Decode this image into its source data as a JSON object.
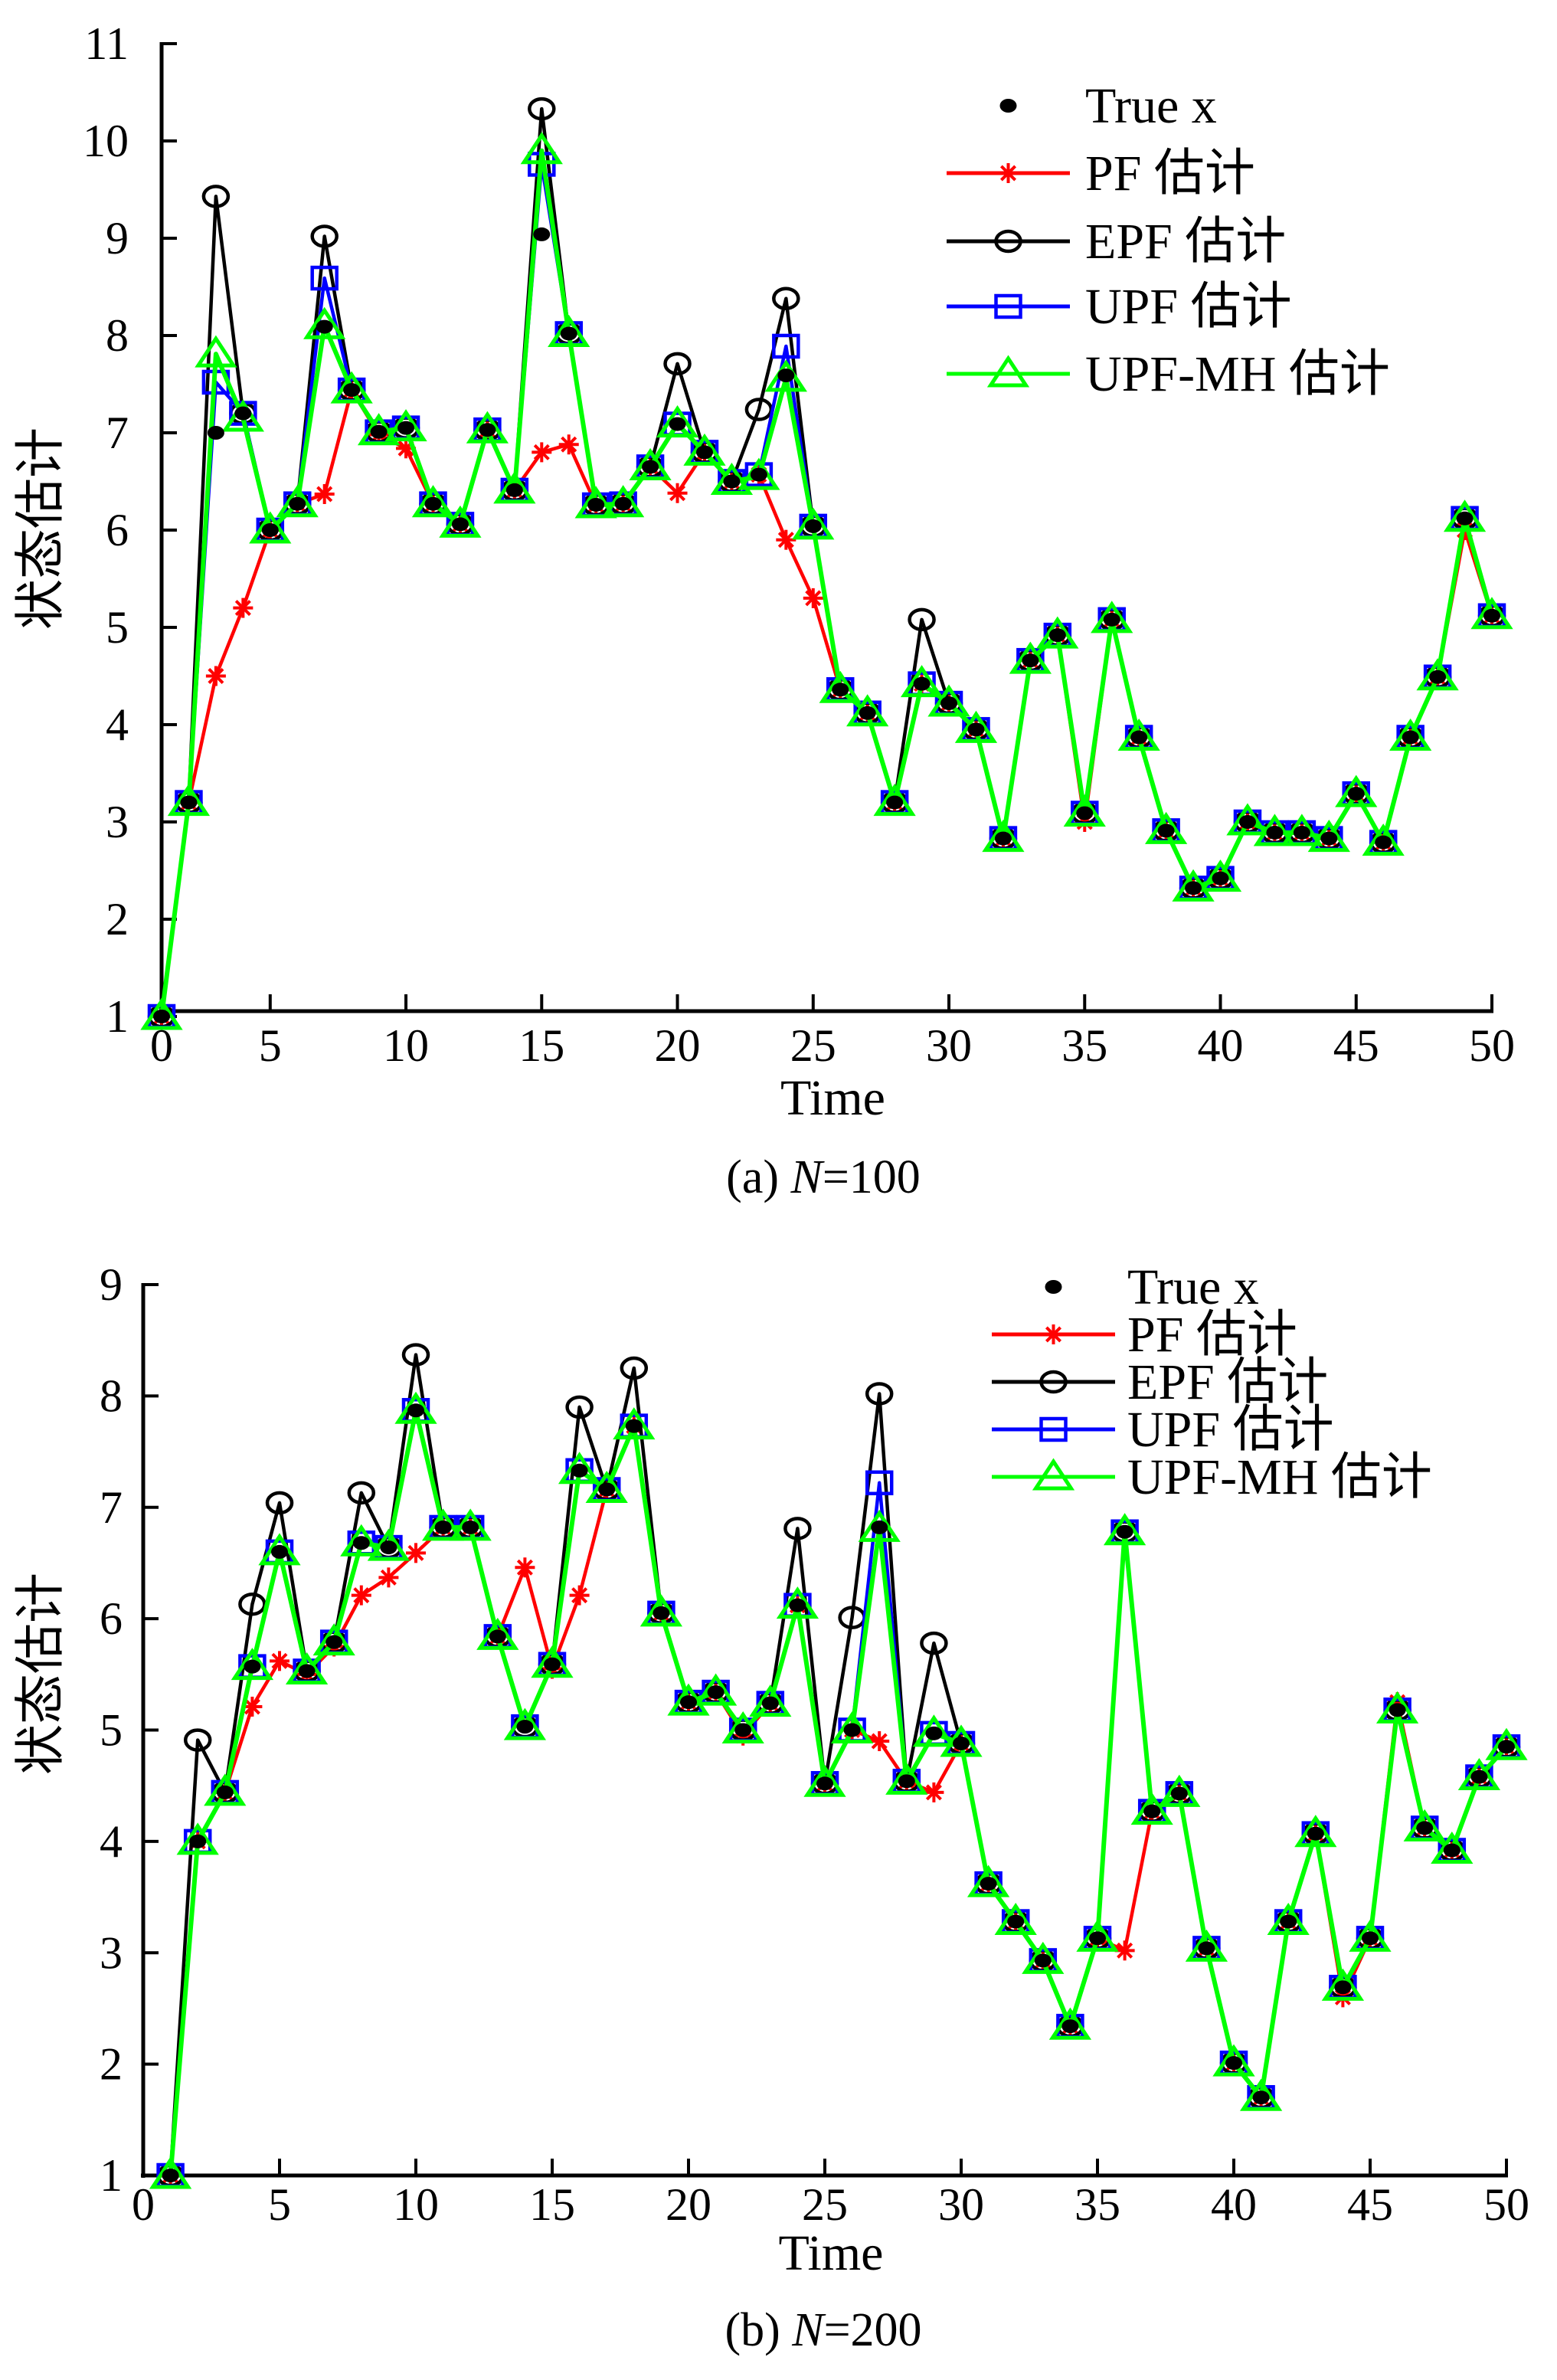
{
  "chart_data": [
    {
      "type": "line",
      "caption": {
        "prefix": "(a) ",
        "var": "N",
        "suffix": "=100"
      },
      "xlabel": "Time",
      "ylabel": "状态估计",
      "xlim": [
        1,
        50
      ],
      "ylim": [
        1,
        11
      ],
      "xticks": [
        0,
        5,
        10,
        15,
        20,
        25,
        30,
        35,
        40,
        45,
        50
      ],
      "yticks": [
        1,
        2,
        3,
        4,
        5,
        6,
        7,
        8,
        9,
        10,
        11
      ],
      "grid": false,
      "legend_position": "top-right",
      "x": [
        1,
        2,
        3,
        4,
        5,
        6,
        7,
        8,
        9,
        10,
        11,
        12,
        13,
        14,
        15,
        16,
        17,
        18,
        19,
        20,
        21,
        22,
        23,
        24,
        25,
        26,
        27,
        28,
        29,
        30,
        31,
        32,
        33,
        34,
        35,
        36,
        37,
        38,
        39,
        40,
        41,
        42,
        43,
        44,
        45,
        46,
        47,
        48,
        49,
        50
      ],
      "series": [
        {
          "name": "True x",
          "key": "true",
          "color": "#000000",
          "marker": "dot",
          "values": [
            1.0,
            3.2,
            7.0,
            7.2,
            6.0,
            6.27,
            8.09,
            7.44,
            7.01,
            7.05,
            6.27,
            6.06,
            7.03,
            6.41,
            9.04,
            8.02,
            6.26,
            6.27,
            6.65,
            7.09,
            6.8,
            6.5,
            6.57,
            7.59,
            6.04,
            4.36,
            4.12,
            3.2,
            4.42,
            4.22,
            3.95,
            2.83,
            4.66,
            4.92,
            3.09,
            5.08,
            3.87,
            2.91,
            2.32,
            2.42,
            3.0,
            2.89,
            2.89,
            2.83,
            3.29,
            2.79,
            3.87,
            4.49,
            6.12,
            5.12
          ]
        },
        {
          "name": "PF 估计",
          "key": "pf",
          "color": "#ff0000",
          "marker": "asterisk",
          "values": [
            1.0,
            3.2,
            4.5,
            5.2,
            6.0,
            6.27,
            6.37,
            7.44,
            6.98,
            6.84,
            6.27,
            6.06,
            7.03,
            6.41,
            6.8,
            6.88,
            6.26,
            6.27,
            6.65,
            6.38,
            6.8,
            6.5,
            6.57,
            5.9,
            5.3,
            4.36,
            4.12,
            3.2,
            4.42,
            4.22,
            3.95,
            2.83,
            4.66,
            4.92,
            3.0,
            5.08,
            3.87,
            2.91,
            2.32,
            2.42,
            3.0,
            2.89,
            2.89,
            2.83,
            3.29,
            2.79,
            3.87,
            4.49,
            6.0,
            5.12
          ]
        },
        {
          "name": "EPF 估计",
          "key": "epf",
          "color": "#000000",
          "marker": "circle",
          "values": [
            1.0,
            3.2,
            9.43,
            7.2,
            6.0,
            6.27,
            9.02,
            7.44,
            7.01,
            7.05,
            6.27,
            6.06,
            7.03,
            6.41,
            10.33,
            8.02,
            6.26,
            6.27,
            6.65,
            7.71,
            6.8,
            6.5,
            7.24,
            8.38,
            6.04,
            4.36,
            4.12,
            3.2,
            5.08,
            4.22,
            3.95,
            2.83,
            4.66,
            4.92,
            3.09,
            5.08,
            3.87,
            2.91,
            2.32,
            2.42,
            3.0,
            2.89,
            2.89,
            2.83,
            3.29,
            2.79,
            3.87,
            4.49,
            6.12,
            5.12
          ]
        },
        {
          "name": "UPF 估计",
          "key": "upf",
          "color": "#0000ff",
          "marker": "square",
          "values": [
            1.0,
            3.2,
            7.52,
            7.2,
            6.0,
            6.27,
            8.59,
            7.44,
            7.01,
            7.05,
            6.27,
            6.06,
            7.03,
            6.41,
            9.76,
            8.02,
            6.26,
            6.27,
            6.65,
            7.09,
            6.8,
            6.5,
            6.57,
            7.89,
            6.04,
            4.36,
            4.12,
            3.2,
            4.42,
            4.22,
            3.95,
            2.83,
            4.66,
            4.92,
            3.09,
            5.08,
            3.87,
            2.91,
            2.32,
            2.42,
            3.0,
            2.89,
            2.89,
            2.83,
            3.29,
            2.79,
            3.87,
            4.49,
            6.12,
            5.12
          ]
        },
        {
          "name": "UPF-MH 估计",
          "key": "upfmh",
          "color": "#00ff00",
          "marker": "triangle",
          "values": [
            1.0,
            3.2,
            7.81,
            7.15,
            6.0,
            6.27,
            8.1,
            7.44,
            7.01,
            7.05,
            6.27,
            6.06,
            7.03,
            6.41,
            9.9,
            8.02,
            6.26,
            6.27,
            6.65,
            7.09,
            6.8,
            6.5,
            6.55,
            7.56,
            6.04,
            4.36,
            4.12,
            3.2,
            4.42,
            4.22,
            3.95,
            2.83,
            4.66,
            4.92,
            3.09,
            5.08,
            3.87,
            2.91,
            2.32,
            2.42,
            3.0,
            2.89,
            2.89,
            2.83,
            3.29,
            2.79,
            3.87,
            4.49,
            6.12,
            5.12
          ]
        }
      ]
    },
    {
      "type": "line",
      "caption": {
        "prefix": "(b) ",
        "var": "N",
        "suffix": "=200"
      },
      "xlabel": "Time",
      "ylabel": "状态估计",
      "xlim": [
        0,
        50
      ],
      "ylim": [
        1,
        9
      ],
      "xticks": [
        0,
        5,
        10,
        15,
        20,
        25,
        30,
        35,
        40,
        45,
        50
      ],
      "yticks": [
        1,
        2,
        3,
        4,
        5,
        6,
        7,
        8,
        9
      ],
      "grid": false,
      "legend_position": "top-right",
      "x": [
        1,
        2,
        3,
        4,
        5,
        6,
        7,
        8,
        9,
        10,
        11,
        12,
        13,
        14,
        15,
        16,
        17,
        18,
        19,
        20,
        21,
        22,
        23,
        24,
        25,
        26,
        27,
        28,
        29,
        30,
        31,
        32,
        33,
        34,
        35,
        36,
        37,
        38,
        39,
        40,
        41,
        42,
        43,
        44,
        45,
        46,
        47,
        48,
        49,
        50
      ],
      "series": [
        {
          "name": "True x",
          "key": "true",
          "color": "#000000",
          "marker": "dot",
          "values": [
            1.0,
            4.0,
            4.44,
            5.57,
            6.6,
            5.53,
            5.79,
            6.68,
            6.64,
            7.87,
            6.82,
            6.82,
            5.84,
            5.03,
            5.59,
            7.33,
            7.16,
            7.73,
            6.05,
            5.25,
            5.34,
            5.0,
            5.24,
            6.12,
            4.52,
            5.0,
            6.82,
            4.54,
            4.97,
            4.88,
            3.62,
            3.28,
            2.93,
            2.34,
            3.13,
            6.78,
            4.27,
            4.43,
            3.04,
            2.01,
            1.7,
            3.28,
            4.07,
            2.69,
            3.13,
            5.18,
            4.12,
            3.92,
            4.58,
            4.85
          ]
        },
        {
          "name": "PF 估计",
          "key": "pf",
          "color": "#ff0000",
          "marker": "asterisk",
          "values": [
            1.0,
            4.0,
            4.44,
            5.21,
            5.62,
            5.5,
            5.75,
            6.21,
            6.37,
            6.59,
            6.82,
            6.82,
            5.84,
            6.46,
            5.55,
            6.21,
            7.16,
            7.73,
            6.05,
            5.25,
            5.34,
            4.95,
            5.24,
            6.12,
            4.52,
            5.0,
            4.9,
            4.54,
            4.44,
            4.88,
            3.62,
            3.28,
            2.93,
            2.34,
            3.13,
            3.02,
            4.27,
            4.43,
            3.04,
            2.01,
            1.7,
            3.28,
            4.07,
            2.6,
            3.13,
            5.25,
            4.12,
            3.92,
            4.58,
            4.85
          ]
        },
        {
          "name": "EPF 估计",
          "key": "epf",
          "color": "#000000",
          "marker": "circle",
          "values": [
            1.0,
            4.91,
            4.44,
            6.13,
            7.04,
            5.53,
            5.79,
            7.13,
            6.64,
            8.37,
            6.82,
            6.82,
            5.84,
            5.03,
            5.59,
            7.9,
            7.16,
            8.25,
            6.05,
            5.25,
            5.34,
            5.0,
            5.24,
            6.81,
            4.52,
            6.01,
            8.02,
            4.54,
            5.78,
            4.88,
            3.62,
            3.28,
            2.93,
            2.34,
            3.13,
            6.78,
            4.27,
            4.43,
            3.04,
            2.01,
            1.7,
            3.28,
            4.07,
            2.69,
            3.13,
            5.18,
            4.12,
            3.92,
            4.58,
            4.85
          ]
        },
        {
          "name": "UPF 估计",
          "key": "upf",
          "color": "#0000ff",
          "marker": "square",
          "values": [
            1.0,
            4.0,
            4.44,
            5.57,
            6.6,
            5.53,
            5.79,
            6.68,
            6.64,
            7.87,
            6.82,
            6.82,
            5.84,
            5.03,
            5.59,
            7.33,
            7.16,
            7.73,
            6.05,
            5.25,
            5.34,
            5.0,
            5.24,
            6.12,
            4.52,
            5.0,
            7.22,
            4.54,
            4.97,
            4.88,
            3.62,
            3.28,
            2.93,
            2.34,
            3.13,
            6.78,
            4.27,
            4.43,
            3.04,
            2.01,
            1.7,
            3.28,
            4.07,
            2.69,
            3.13,
            5.18,
            4.12,
            3.92,
            4.58,
            4.85
          ]
        },
        {
          "name": "UPF-MH 估计",
          "key": "upfmh",
          "color": "#00ff00",
          "marker": "triangle",
          "values": [
            1.0,
            4.0,
            4.44,
            5.57,
            6.6,
            5.53,
            5.79,
            6.68,
            6.64,
            7.87,
            6.82,
            6.82,
            5.84,
            5.03,
            5.59,
            7.33,
            7.16,
            7.73,
            6.05,
            5.25,
            5.34,
            5.0,
            5.24,
            6.12,
            4.52,
            5.0,
            6.81,
            4.54,
            4.97,
            4.88,
            3.62,
            3.28,
            2.93,
            2.34,
            3.13,
            6.78,
            4.27,
            4.43,
            3.04,
            2.01,
            1.7,
            3.28,
            4.07,
            2.69,
            3.13,
            5.18,
            4.12,
            3.92,
            4.58,
            4.85
          ]
        }
      ]
    }
  ]
}
